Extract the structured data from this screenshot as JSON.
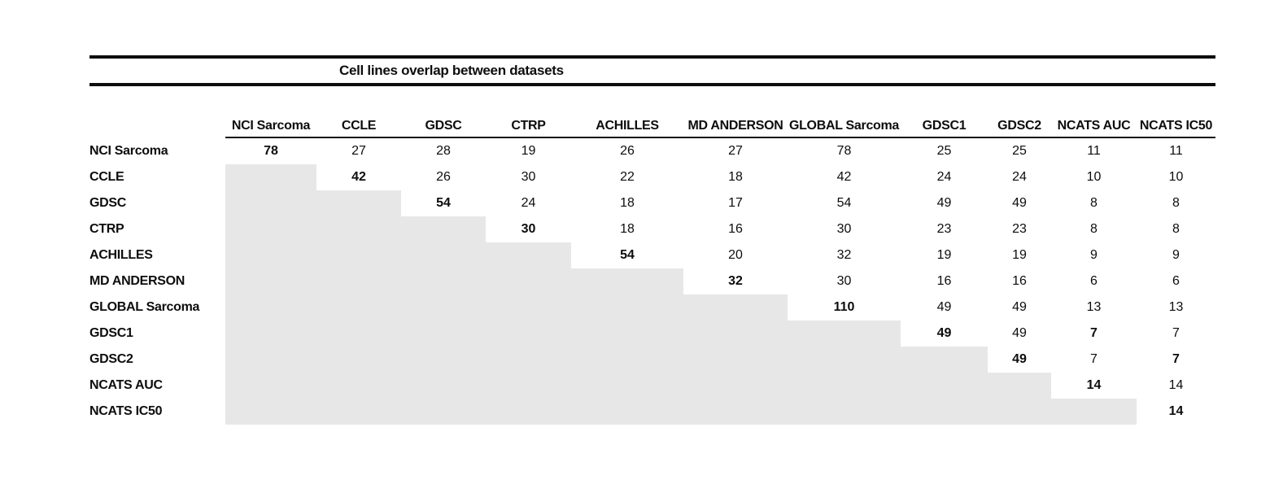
{
  "chart_data": {
    "type": "table",
    "title": "Cell lines overlap between datasets",
    "columns": [
      "NCI Sarcoma",
      "CCLE",
      "GDSC",
      "CTRP",
      "ACHILLES",
      "MD ANDERSON",
      "GLOBAL Sarcoma",
      "GDSC1",
      "GDSC2",
      "NCATS AUC",
      "NCATS IC50"
    ],
    "rows": [
      "NCI Sarcoma",
      "CCLE",
      "GDSC",
      "CTRP",
      "ACHILLES",
      "MD ANDERSON",
      "GLOBAL Sarcoma",
      "GDSC1",
      "GDSC2",
      "NCATS AUC",
      "NCATS IC50"
    ],
    "matrix": [
      [
        78,
        27,
        28,
        19,
        26,
        27,
        78,
        25,
        25,
        11,
        11
      ],
      [
        null,
        42,
        26,
        30,
        22,
        18,
        42,
        24,
        24,
        10,
        10
      ],
      [
        null,
        null,
        54,
        24,
        18,
        17,
        54,
        49,
        49,
        8,
        8
      ],
      [
        null,
        null,
        null,
        30,
        18,
        16,
        30,
        23,
        23,
        8,
        8
      ],
      [
        null,
        null,
        null,
        null,
        54,
        20,
        32,
        19,
        19,
        9,
        9
      ],
      [
        null,
        null,
        null,
        null,
        null,
        32,
        30,
        16,
        16,
        6,
        6
      ],
      [
        null,
        null,
        null,
        null,
        null,
        null,
        110,
        49,
        49,
        13,
        13
      ],
      [
        null,
        null,
        null,
        null,
        null,
        null,
        null,
        49,
        49,
        7,
        7
      ],
      [
        null,
        null,
        null,
        null,
        null,
        null,
        null,
        null,
        49,
        7,
        7
      ],
      [
        null,
        null,
        null,
        null,
        null,
        null,
        null,
        null,
        null,
        14,
        14
      ],
      [
        null,
        null,
        null,
        null,
        null,
        null,
        null,
        null,
        null,
        null,
        14
      ]
    ],
    "bold_cells": [
      [
        0,
        0
      ],
      [
        1,
        1
      ],
      [
        2,
        2
      ],
      [
        3,
        3
      ],
      [
        4,
        4
      ],
      [
        5,
        5
      ],
      [
        6,
        6
      ],
      [
        7,
        7
      ],
      [
        8,
        8
      ],
      [
        9,
        9
      ],
      [
        10,
        10
      ],
      [
        7,
        9
      ],
      [
        8,
        10
      ]
    ],
    "layout": {
      "lower_triangle": "shaded",
      "grid": "off",
      "legend": "none"
    }
  },
  "colors": {
    "shaded_cell": "#e7e7e7",
    "rule": "#0d0d0d",
    "text": "#0d0d0d"
  }
}
